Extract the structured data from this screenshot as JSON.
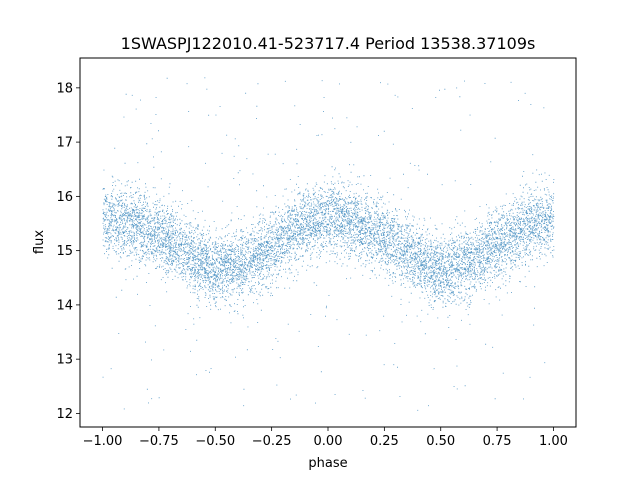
{
  "chart_data": {
    "type": "scatter",
    "title": "1SWASPJ122010.41-523717.4 Period 13538.37109s",
    "xlabel": "phase",
    "ylabel": "flux",
    "xlim": [
      -1.1,
      1.1
    ],
    "ylim": [
      11.75,
      18.55
    ],
    "x_ticks": [
      -1.0,
      -0.75,
      -0.5,
      -0.25,
      0.0,
      0.25,
      0.5,
      0.75,
      1.0
    ],
    "x_tick_labels": [
      "−1.00",
      "−0.75",
      "−0.50",
      "−0.25",
      "0.00",
      "0.25",
      "0.50",
      "0.75",
      "1.00"
    ],
    "y_ticks": [
      12,
      13,
      14,
      15,
      16,
      17,
      18
    ],
    "y_tick_labels": [
      "12",
      "13",
      "14",
      "15",
      "16",
      "17",
      "18"
    ],
    "grid": false,
    "point_color": "#1f77b4",
    "series": [
      {
        "x_range": [
          -1.0,
          1.0
        ],
        "approx_point_count": 40000,
        "trend": {
          "x": [
            -1.0,
            -0.875,
            -0.75,
            -0.625,
            -0.5,
            -0.375,
            -0.25,
            -0.125,
            0.0,
            0.125,
            0.25,
            0.375,
            0.5,
            0.625,
            0.75,
            0.875,
            1.0
          ],
          "y": [
            15.6,
            15.5,
            15.3,
            14.95,
            14.65,
            14.75,
            15.1,
            15.45,
            15.65,
            15.5,
            15.25,
            14.9,
            14.6,
            14.75,
            15.1,
            15.45,
            15.6
          ]
        },
        "core_spread": 0.32,
        "outlier_range": [
          12.0,
          18.2
        ]
      }
    ]
  }
}
